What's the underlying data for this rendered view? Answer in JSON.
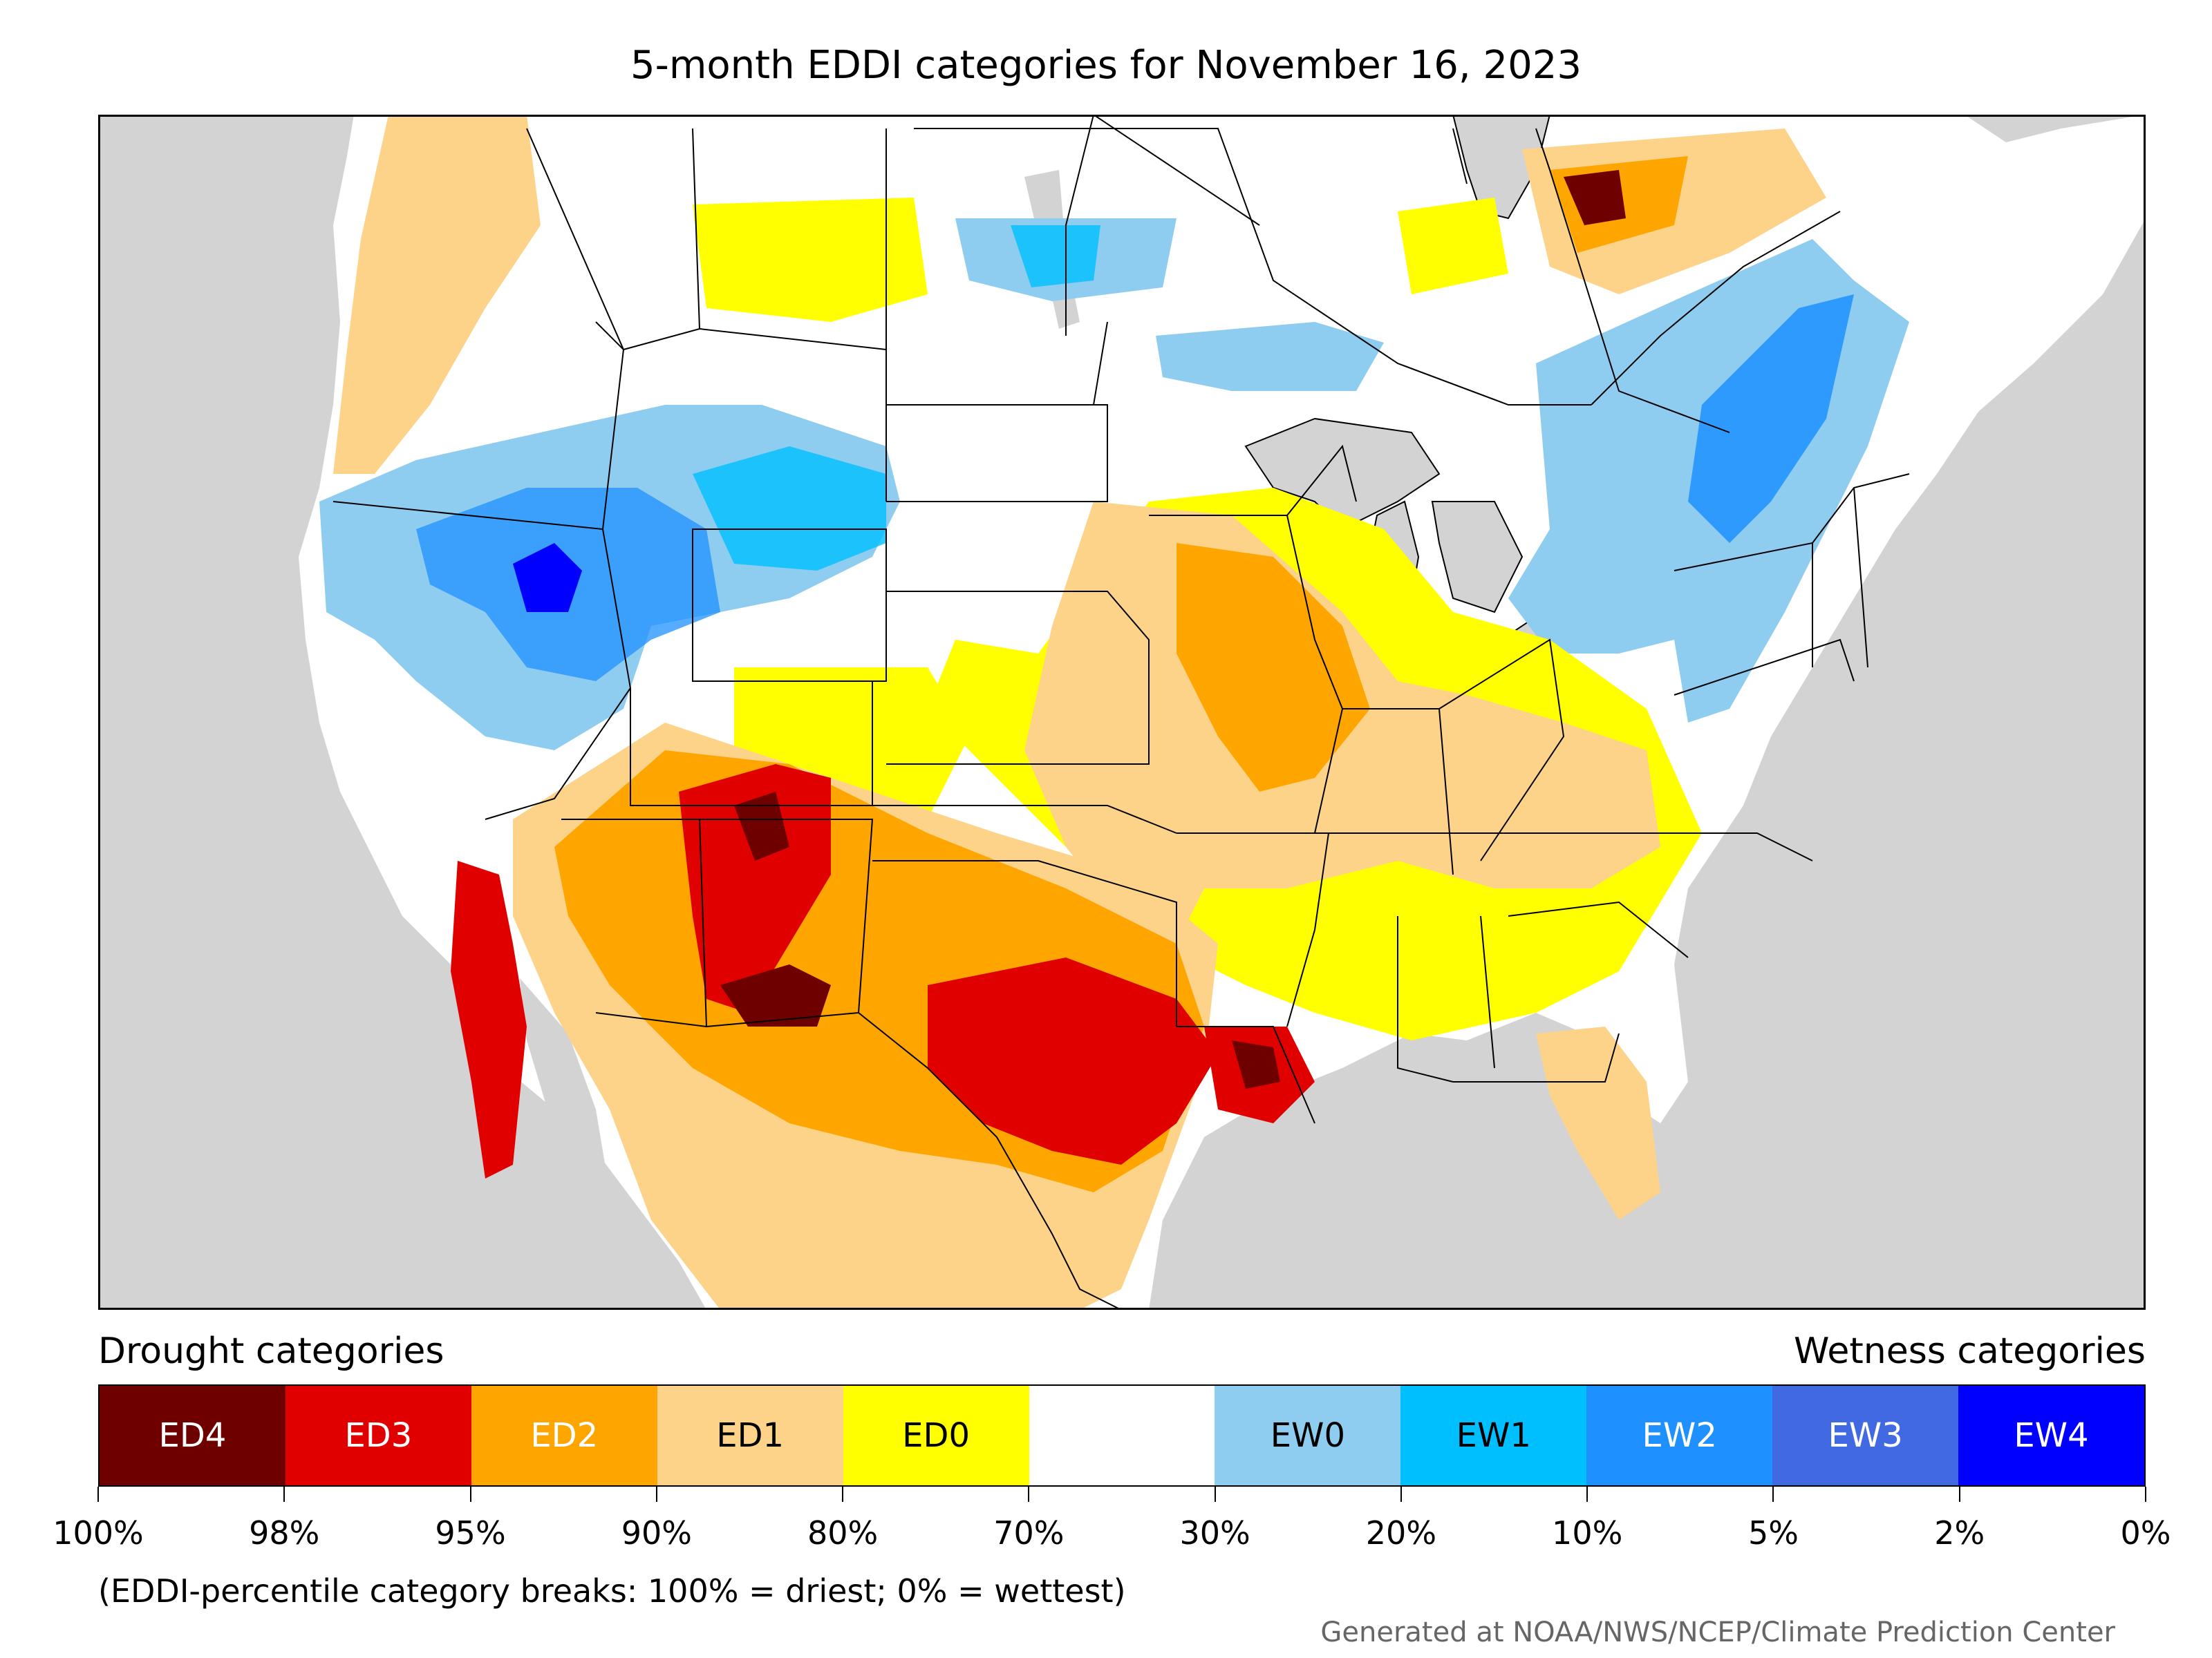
{
  "title": "5-month EDDI categories for November 16, 2023",
  "legend": {
    "drought_label": "Drought categories",
    "wetness_label": "Wetness categories",
    "categories": [
      {
        "label": "ED4",
        "color": "#6e0000",
        "text_color": "#ffffff"
      },
      {
        "label": "ED3",
        "color": "#e10000",
        "text_color": "#ffffff"
      },
      {
        "label": "ED2",
        "color": "#ffa500",
        "text_color": "#ffffff"
      },
      {
        "label": "ED1",
        "color": "#fdd38a",
        "text_color": "#000000"
      },
      {
        "label": "ED0",
        "color": "#ffff00",
        "text_color": "#000000"
      },
      {
        "label": "",
        "color": "#ffffff",
        "text_color": "#000000"
      },
      {
        "label": "EW0",
        "color": "#8ecdf0",
        "text_color": "#000000"
      },
      {
        "label": "EW1",
        "color": "#00bfff",
        "text_color": "#000000"
      },
      {
        "label": "EW2",
        "color": "#1e90ff",
        "text_color": "#ffffff"
      },
      {
        "label": "EW3",
        "color": "#4169e1",
        "text_color": "#ffffff"
      },
      {
        "label": "EW4",
        "color": "#0000ff",
        "text_color": "#ffffff"
      }
    ],
    "breaks": [
      "100%",
      "98%",
      "95%",
      "90%",
      "80%",
      "70%",
      "30%",
      "20%",
      "10%",
      "5%",
      "2%",
      "0%"
    ]
  },
  "note": "(EDDI-percentile category breaks: 100% = driest; 0% = wettest)",
  "credit": "Generated at NOAA/NWS/NCEP/Climate Prediction Center",
  "colors": {
    "ocean": "#d3d3d3",
    "land": "#ffffff"
  }
}
